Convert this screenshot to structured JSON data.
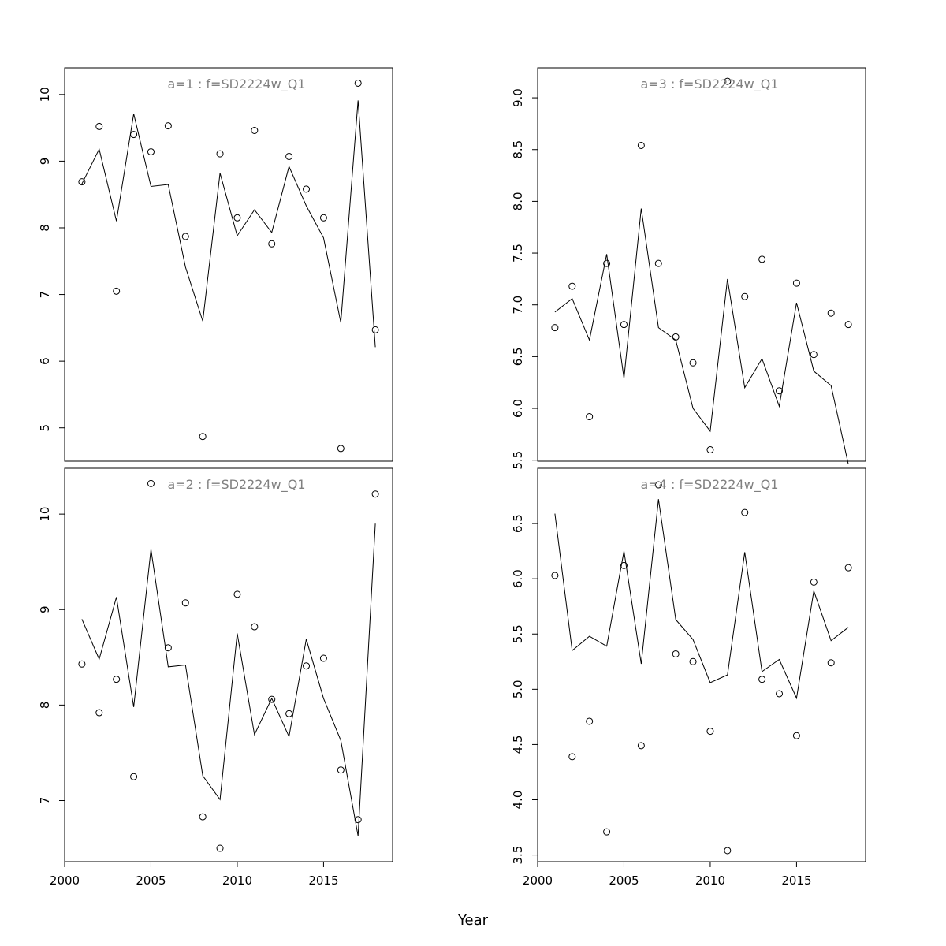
{
  "xlabel": "Year",
  "chart_data": [
    {
      "type": "line",
      "title": "a=1  :  f=SD2224w_Q1",
      "x": [
        2001,
        2002,
        2003,
        2004,
        2005,
        2006,
        2007,
        2008,
        2009,
        2010,
        2011,
        2012,
        2013,
        2014,
        2015,
        2016,
        2017,
        2018
      ],
      "series": [
        {
          "style": "points",
          "values": [
            8.69,
            9.52,
            7.05,
            9.4,
            9.14,
            9.53,
            7.87,
            4.87,
            9.11,
            8.15,
            9.46,
            7.76,
            9.07,
            8.58,
            8.15,
            4.69,
            10.17,
            6.47
          ]
        },
        {
          "style": "line",
          "values": [
            8.66,
            9.18,
            8.1,
            9.71,
            8.62,
            8.65,
            7.41,
            6.6,
            8.82,
            7.88,
            8.27,
            7.93,
            8.92,
            8.33,
            7.85,
            6.58,
            9.91,
            6.21
          ]
        }
      ],
      "xlim": [
        2000,
        2019
      ],
      "ylim": [
        4.5,
        10.4
      ],
      "yticks": [
        5,
        6,
        7,
        8,
        9,
        10
      ],
      "xticks": [],
      "ytick_labels": [
        "5",
        "6",
        "7",
        "8",
        "9",
        "10"
      ],
      "xtick_labels": []
    },
    {
      "type": "line",
      "title": "a=3  :  f=SD2224w_Q1",
      "x": [
        2001,
        2002,
        2003,
        2004,
        2005,
        2006,
        2007,
        2008,
        2009,
        2010,
        2011,
        2012,
        2013,
        2014,
        2015,
        2016,
        2017,
        2018
      ],
      "series": [
        {
          "style": "points",
          "values": [
            6.78,
            7.18,
            5.92,
            7.4,
            6.81,
            8.54,
            7.4,
            6.69,
            6.44,
            5.6,
            9.16,
            7.08,
            7.44,
            6.17,
            7.21,
            6.52,
            6.92,
            6.81
          ]
        },
        {
          "style": "line",
          "values": [
            6.93,
            7.06,
            6.66,
            7.49,
            6.29,
            7.93,
            6.78,
            6.66,
            6.0,
            5.78,
            7.25,
            6.2,
            6.48,
            6.02,
            7.02,
            6.36,
            6.22,
            5.46
          ]
        }
      ],
      "xlim": [
        2000,
        2019
      ],
      "ylim": [
        5.49,
        9.29
      ],
      "yticks": [
        5.5,
        6.0,
        6.5,
        7.0,
        7.5,
        8.0,
        8.5,
        9.0
      ],
      "xticks": [],
      "ytick_labels": [
        "5.5",
        "6.0",
        "6.5",
        "7.0",
        "7.5",
        "8.0",
        "8.5",
        "9.0"
      ],
      "xtick_labels": []
    },
    {
      "type": "line",
      "title": "a=2  :  f=SD2224w_Q1",
      "x": [
        2001,
        2002,
        2003,
        2004,
        2005,
        2006,
        2007,
        2008,
        2009,
        2010,
        2011,
        2012,
        2013,
        2014,
        2015,
        2016,
        2017,
        2018
      ],
      "series": [
        {
          "style": "points",
          "values": [
            8.43,
            7.92,
            8.27,
            7.25,
            10.32,
            8.6,
            9.07,
            6.83,
            6.5,
            9.16,
            8.82,
            8.06,
            7.91,
            8.41,
            8.49,
            7.32,
            6.8,
            10.21
          ]
        },
        {
          "style": "line",
          "values": [
            8.9,
            8.48,
            9.13,
            7.98,
            9.63,
            8.4,
            8.42,
            7.26,
            7.01,
            8.75,
            7.69,
            8.07,
            7.67,
            8.69,
            8.07,
            7.63,
            6.63,
            9.9
          ]
        }
      ],
      "xlim": [
        2000,
        2019
      ],
      "ylim": [
        6.36,
        10.48
      ],
      "yticks": [
        7,
        8,
        9,
        10
      ],
      "xticks": [
        2000,
        2005,
        2010,
        2015
      ],
      "ytick_labels": [
        "7",
        "8",
        "9",
        "10"
      ],
      "xtick_labels": [
        "2000",
        "2005",
        "2010",
        "2015"
      ]
    },
    {
      "type": "line",
      "title": "a=4  :  f=SD2224w_Q1",
      "x": [
        2001,
        2002,
        2003,
        2004,
        2005,
        2006,
        2007,
        2008,
        2009,
        2010,
        2011,
        2012,
        2013,
        2014,
        2015,
        2016,
        2017,
        2018
      ],
      "series": [
        {
          "style": "points",
          "values": [
            6.03,
            4.39,
            4.71,
            3.71,
            6.12,
            4.49,
            6.85,
            5.32,
            5.25,
            4.62,
            3.54,
            6.6,
            5.09,
            4.96,
            4.58,
            5.97,
            5.24,
            6.1
          ]
        },
        {
          "style": "line",
          "values": [
            6.59,
            5.35,
            5.48,
            5.39,
            6.25,
            5.23,
            6.72,
            5.63,
            5.45,
            5.06,
            5.13,
            6.24,
            5.16,
            5.27,
            4.92,
            5.89,
            5.44,
            5.56
          ]
        }
      ],
      "xlim": [
        2000,
        2019
      ],
      "ylim": [
        3.44,
        7.0
      ],
      "yticks": [
        3.5,
        4.0,
        4.5,
        5.0,
        5.5,
        6.0,
        6.5
      ],
      "xticks": [
        2000,
        2005,
        2010,
        2015
      ],
      "ytick_labels": [
        "3.5",
        "4.0",
        "4.5",
        "5.0",
        "5.5",
        "6.0",
        "6.5"
      ],
      "xtick_labels": [
        "2000",
        "2005",
        "2010",
        "2015"
      ]
    }
  ]
}
